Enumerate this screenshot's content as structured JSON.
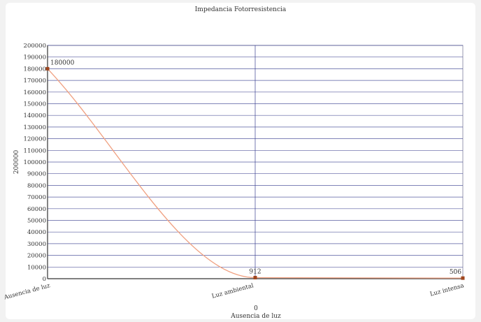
{
  "chart_data": {
    "type": "line",
    "title": "Impedancia Fotorresistencia",
    "xlabel_value": "0",
    "xlabel": "Ausencia de luz",
    "ylabel": "200000",
    "categories": [
      "Ausencia de luz",
      "Luz ambiental",
      "Luz intensa"
    ],
    "series": [
      {
        "values": [
          180000,
          912,
          506
        ]
      }
    ],
    "data_labels": [
      "180000",
      "912",
      "506"
    ],
    "y_ticks": [
      "0",
      "10000",
      "20000",
      "30000",
      "40000",
      "50000",
      "60000",
      "70000",
      "80000",
      "90000",
      "100000",
      "110000",
      "120000",
      "130000",
      "140000",
      "150000",
      "160000",
      "170000",
      "180000",
      "190000",
      "200000"
    ],
    "ylim": [
      0,
      200000
    ],
    "grid": true,
    "smooth": true,
    "colors": {
      "line": "#f0a080",
      "marker": "#a0461e",
      "grid": "#3a3f8f",
      "axis": "#333333"
    }
  }
}
